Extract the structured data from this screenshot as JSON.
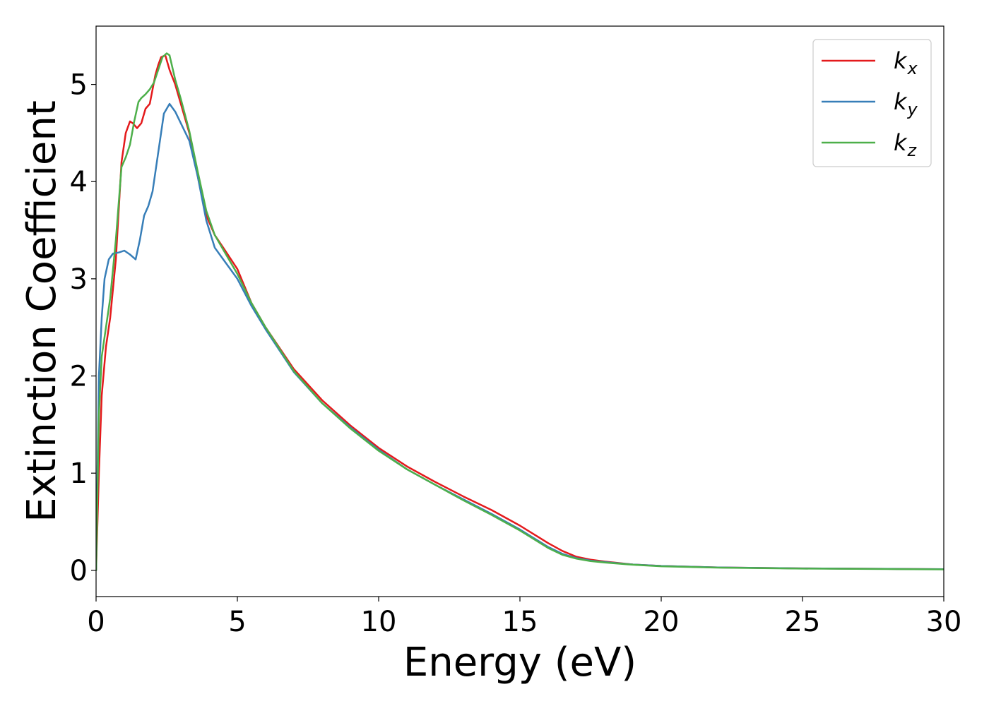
{
  "colors": {
    "kx": "#e41a1c",
    "ky": "#377eb8",
    "kz": "#4daf4a",
    "axis": "#000000",
    "legend_border": "#cccccc"
  },
  "chart_data": {
    "type": "line",
    "title": "",
    "xlabel": "Energy (eV)",
    "ylabel": "Extinction Coefficient",
    "xlim": [
      0,
      30
    ],
    "ylim": [
      -0.27,
      5.6
    ],
    "xticks": [
      0,
      5,
      10,
      15,
      20,
      25,
      30
    ],
    "yticks": [
      0,
      1,
      2,
      3,
      4,
      5
    ],
    "xtick_labels": [
      "0",
      "5",
      "10",
      "15",
      "20",
      "25",
      "30"
    ],
    "ytick_labels": [
      "0",
      "1",
      "2",
      "3",
      "4",
      "5"
    ],
    "grid": false,
    "legend_position": "top-right",
    "legend": [
      {
        "base": "k",
        "sub": "x"
      },
      {
        "base": "k",
        "sub": "y"
      },
      {
        "base": "k",
        "sub": "z"
      }
    ],
    "series": [
      {
        "name": "kx",
        "color": "#e41a1c",
        "x": [
          0,
          0.1,
          0.2,
          0.35,
          0.5,
          0.7,
          0.9,
          1.05,
          1.2,
          1.3,
          1.45,
          1.6,
          1.75,
          1.9,
          2.0,
          2.1,
          2.2,
          2.3,
          2.45,
          2.6,
          2.8,
          3.0,
          3.3,
          3.6,
          3.9,
          4.2,
          4.5,
          5.0,
          5.5,
          6.0,
          7.0,
          8.0,
          8.5,
          9.0,
          10.0,
          11.0,
          12.0,
          13.0,
          14.0,
          15.0,
          15.5,
          16.0,
          16.5,
          17.0,
          17.5,
          18.0,
          19.0,
          20.0,
          22.0,
          25.0,
          28.0,
          30.0
        ],
        "y": [
          0,
          1.0,
          1.8,
          2.3,
          2.6,
          3.2,
          4.2,
          4.5,
          4.62,
          4.6,
          4.55,
          4.6,
          4.75,
          4.8,
          4.95,
          5.1,
          5.2,
          5.28,
          5.3,
          5.15,
          5.0,
          4.8,
          4.5,
          4.05,
          3.65,
          3.45,
          3.32,
          3.1,
          2.75,
          2.5,
          2.07,
          1.75,
          1.62,
          1.49,
          1.26,
          1.07,
          0.91,
          0.76,
          0.62,
          0.46,
          0.37,
          0.28,
          0.2,
          0.14,
          0.11,
          0.09,
          0.06,
          0.045,
          0.03,
          0.02,
          0.015,
          0.012
        ]
      },
      {
        "name": "ky",
        "color": "#377eb8",
        "x": [
          0,
          0.1,
          0.2,
          0.3,
          0.45,
          0.6,
          0.8,
          1.0,
          1.2,
          1.4,
          1.55,
          1.7,
          1.85,
          2.0,
          2.2,
          2.4,
          2.6,
          2.8,
          3.0,
          3.3,
          3.6,
          3.9,
          4.2,
          4.5,
          5.0,
          5.5,
          6.0,
          7.0,
          8.0,
          9.0,
          10.0,
          11.0,
          12.0,
          13.0,
          14.0,
          15.0,
          15.5,
          16.0,
          16.5,
          17.0,
          17.5,
          18.0,
          19.0,
          20.0,
          22.0,
          25.0,
          28.0,
          30.0
        ],
        "y": [
          0,
          2.0,
          2.6,
          3.0,
          3.2,
          3.26,
          3.27,
          3.29,
          3.25,
          3.2,
          3.4,
          3.65,
          3.75,
          3.9,
          4.3,
          4.7,
          4.8,
          4.72,
          4.6,
          4.42,
          4.05,
          3.6,
          3.32,
          3.2,
          3.0,
          2.72,
          2.48,
          2.04,
          1.72,
          1.47,
          1.24,
          1.04,
          0.88,
          0.73,
          0.58,
          0.42,
          0.33,
          0.24,
          0.17,
          0.125,
          0.1,
          0.085,
          0.06,
          0.045,
          0.03,
          0.02,
          0.015,
          0.012
        ]
      },
      {
        "name": "kz",
        "color": "#4daf4a",
        "x": [
          0,
          0.1,
          0.2,
          0.35,
          0.5,
          0.7,
          0.9,
          1.05,
          1.2,
          1.35,
          1.5,
          1.6,
          1.75,
          1.9,
          2.05,
          2.2,
          2.35,
          2.5,
          2.6,
          2.8,
          3.0,
          3.3,
          3.6,
          3.9,
          4.2,
          4.5,
          5.0,
          5.5,
          6.0,
          7.0,
          8.0,
          9.0,
          10.0,
          11.0,
          12.0,
          13.0,
          14.0,
          15.0,
          15.5,
          16.0,
          16.5,
          17.0,
          17.5,
          18.0,
          19.0,
          20.0,
          22.0,
          25.0,
          28.0,
          30.0
        ],
        "y": [
          0,
          1.6,
          2.2,
          2.5,
          2.8,
          3.4,
          4.15,
          4.25,
          4.38,
          4.62,
          4.82,
          4.86,
          4.9,
          4.95,
          5.02,
          5.15,
          5.28,
          5.32,
          5.3,
          5.05,
          4.85,
          4.52,
          4.1,
          3.7,
          3.45,
          3.3,
          3.05,
          2.75,
          2.5,
          2.05,
          1.72,
          1.46,
          1.23,
          1.04,
          0.88,
          0.72,
          0.57,
          0.41,
          0.32,
          0.23,
          0.16,
          0.12,
          0.095,
          0.08,
          0.058,
          0.042,
          0.028,
          0.018,
          0.013,
          0.01
        ]
      }
    ]
  }
}
